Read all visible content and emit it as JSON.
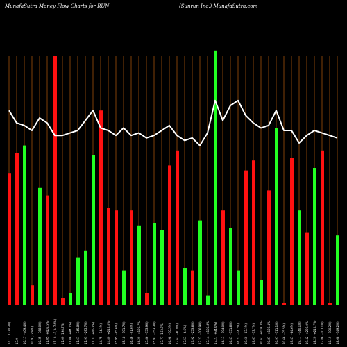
{
  "header": {
    "left": "MunafaSutra  Money Flow  Charts for RUN",
    "right": "(Sunrun  Inc.) MunafaSutra.com"
  },
  "colors": {
    "background": "#000000",
    "up": "#22ff22",
    "down": "#ff1111",
    "line": "#ffffff",
    "grid": "#a0520a",
    "text": "#ffffff"
  },
  "chart_data": {
    "type": "bar",
    "title": "MunafaSutra  Money Flow  Charts for RUN",
    "subtitle": "(Sunrun  Inc.) MunafaSutra.com",
    "ylim": [
      0,
      100
    ],
    "grid": "vertical lines",
    "categories": [
      "14.11 2 (70.3%)",
      "13.9",
      "10.17 (-409.4%)",
      "10.9 (72.8%)",
      "10.35 (-368.0%)",
      "11.05 (+406.5%)",
      "11.10 (-1,347.6%)",
      "11.09 (198.7%)",
      "11.06 (+84.1%)",
      "11.61 (-745.8%)",
      "11.93 (-295.7%)",
      "11.32 (+45.2%)",
      "14.75 (-14.1%)",
      "14.89 (+246.8%)",
      "15.95 (-95.6%)",
      "15.18 (-191.7%)",
      "16.46 (-91.6%)",
      "16.29 (+195.7%)",
      "15.86 (-153.9%)",
      "15.92 (-153.3%)",
      "17.77 (163.7%)",
      "16.98 (-70.5%)",
      "17.62 (-60.9%)",
      "17.53 (-6.6%)",
      "17.92 (-253.8%)",
      "17.22 (-106.9%)",
      "17.14 (+105.8%)",
      "17.27 (+34.0%)",
      "16.13 (-194.0%)",
      "16.41 (-151.8%)",
      "16.22 (-14.2%)",
      "19.60 (-83.1%)",
      "19.67 (-33.7%)",
      "20.61 (+103.3%)",
      "20.81 (+126.4%)",
      "20.97 (-111.1%)",
      "20.66 (-35.5%)",
      "19.41 (-84.6%)",
      "19.11 (-140.1%)",
      "19.42 (+296.0%)",
      "18.29 (+210.7%)",
      "17.86 (-107.1%)",
      "18.19 (-100.2%)",
      "18.68 (-149.2%)"
    ],
    "series": [
      {
        "type": "bar",
        "values": [
          53,
          61,
          64,
          8,
          47,
          44,
          100,
          3,
          5,
          19,
          22,
          60,
          78,
          39,
          38,
          14,
          38,
          32,
          5,
          33,
          30,
          56,
          62,
          15,
          14,
          34,
          4,
          102,
          38,
          31,
          14,
          54,
          58,
          10,
          46,
          71,
          1,
          59,
          38,
          29,
          55,
          62,
          1,
          28
        ],
        "colors": [
          "down",
          "down",
          "up",
          "down",
          "up",
          "down",
          "down",
          "down",
          "up",
          "up",
          "up",
          "up",
          "down",
          "down",
          "down",
          "up",
          "down",
          "up",
          "down",
          "up",
          "up",
          "down",
          "down",
          "up",
          "down",
          "up",
          "up",
          "up",
          "down",
          "up",
          "up",
          "down",
          "down",
          "up",
          "down",
          "up",
          "down",
          "down",
          "up",
          "down",
          "up",
          "down",
          "down",
          "up"
        ]
      },
      {
        "type": "line",
        "values": [
          78,
          73,
          72,
          70,
          75,
          73,
          68,
          68,
          69,
          70,
          74,
          78,
          71,
          70,
          68,
          71,
          68,
          69,
          67,
          68,
          70,
          72,
          68,
          66,
          67,
          64,
          69,
          82,
          74,
          80,
          82,
          76,
          73,
          71,
          72,
          78,
          70,
          70,
          65,
          68,
          70,
          69,
          68,
          67
        ]
      }
    ]
  }
}
